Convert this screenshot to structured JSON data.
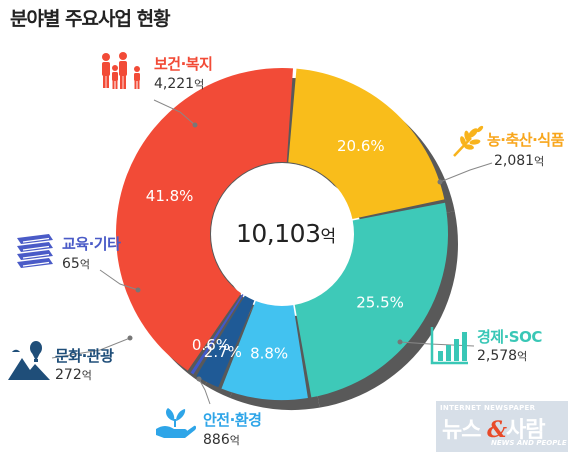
{
  "title": "분야별 주요사업 현황",
  "total": {
    "value": "10,103",
    "unit": "억"
  },
  "categories": [
    {
      "id": "health",
      "name": "보건·복지",
      "value": "4,221",
      "unit": "억",
      "icon": "family-icon",
      "color": "#f24b37"
    },
    {
      "id": "agri",
      "name": "농·축산·식품",
      "value": "2,081",
      "unit": "억",
      "icon": "wheat-icon",
      "color": "#f8b31c"
    },
    {
      "id": "econ",
      "name": "경제·SOC",
      "value": "2,578",
      "unit": "억",
      "icon": "growth-chart-icon",
      "color": "#39c7b6"
    },
    {
      "id": "safety",
      "name": "안전·환경",
      "value": "886",
      "unit": "억",
      "icon": "hand-plant-icon",
      "color": "#2ea5e8"
    },
    {
      "id": "culture",
      "name": "문화·관광",
      "value": "272",
      "unit": "억",
      "icon": "mountain-balloon-icon",
      "color": "#1f4e79"
    },
    {
      "id": "edu",
      "name": "교육·기타",
      "value": "65",
      "unit": "억",
      "icon": "books-icon",
      "color": "#4a5bc7"
    }
  ],
  "chart_data": {
    "type": "pie",
    "title": "분야별 주요사업 현황",
    "labels": [
      "보건·복지",
      "농·축산·식품",
      "경제·SOC",
      "안전·환경",
      "문화·관광",
      "교육·기타"
    ],
    "values": [
      4221,
      2081,
      2578,
      886,
      272,
      65
    ],
    "percent_labels": [
      "41.8%",
      "20.6%",
      "25.5%",
      "8.8%",
      "2.7%",
      "0.6%"
    ],
    "unit": "억",
    "total": 10103,
    "colors": [
      "#f24b37",
      "#f9bd1b",
      "#3ec9b8",
      "#42c2f0",
      "#1f5a96",
      "#4158c8"
    ],
    "style": "donut"
  },
  "watermark": {
    "top": "INTERNET NEWSPAPER",
    "main_left": "뉴스",
    "amp": "&",
    "main_right": "사람",
    "bottom": "NEWS AND PEOPLE"
  }
}
